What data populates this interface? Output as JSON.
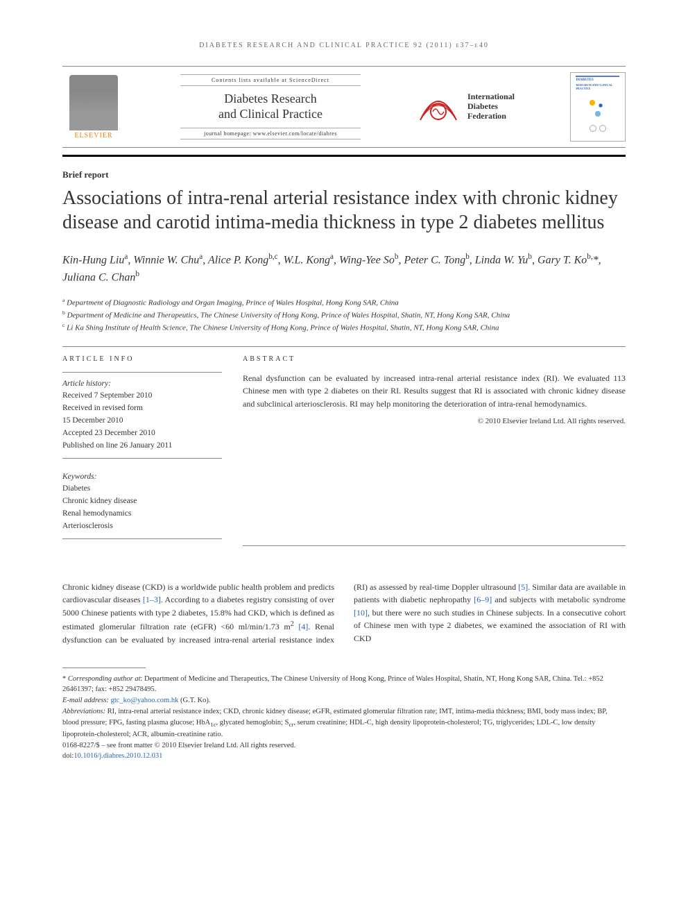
{
  "running_head": "DIABETES RESEARCH AND CLINICAL PRACTICE 92 (2011) e37–e40",
  "header": {
    "contents_line": "Contents lists available at ScienceDirect",
    "journal_title_l1": "Diabetes Research",
    "journal_title_l2": "and Clinical Practice",
    "homepage": "journal homepage: www.elsevier.com/locate/diabres",
    "elsevier_label": "ELSEVIER",
    "idf_l1": "International",
    "idf_l2": "Diabetes",
    "idf_l3": "Federation",
    "cover_label_l1": "DIABETES",
    "cover_label_l2": "RESEARCH AND CLINICAL PRACTICE"
  },
  "article": {
    "section": "Brief report",
    "title": "Associations of intra-renal arterial resistance index with chronic kidney disease and carotid intima-media thickness in type 2 diabetes mellitus",
    "authors_html": "Kin-Hung Liu<sup>a</sup>, Winnie W. Chu<sup>a</sup>, Alice P. Kong<sup>b,c</sup>, W.L. Kong<sup>a</sup>, Wing-Yee So<sup>b</sup>, Peter C. Tong<sup>b</sup>, Linda W. Yu<sup>b</sup>, Gary T. Ko<sup>b,</sup>*, Juliana C. Chan<sup>b</sup>",
    "affiliations": [
      "<sup>a</sup> Department of Diagnostic Radiology and Organ Imaging, Prince of Wales Hospital, Hong Kong SAR, China",
      "<sup>b</sup> Department of Medicine and Therapeutics, The Chinese University of Hong Kong, Prince of Wales Hospital, Shatin, NT, Hong Kong SAR, China",
      "<sup>c</sup> Li Ka Shing Institute of Health Science, The Chinese University of Hong Kong, Prince of Wales Hospital, Shatin, NT, Hong Kong SAR, China"
    ]
  },
  "info": {
    "heading": "ARTICLE INFO",
    "history_label": "Article history:",
    "history": [
      "Received 7 September 2010",
      "Received in revised form",
      "15 December 2010",
      "Accepted 23 December 2010",
      "Published on line 26 January 2011"
    ],
    "keywords_label": "Keywords:",
    "keywords": [
      "Diabetes",
      "Chronic kidney disease",
      "Renal hemodynamics",
      "Arteriosclerosis"
    ]
  },
  "abstract": {
    "heading": "ABSTRACT",
    "text": "Renal dysfunction can be evaluated by increased intra-renal arterial resistance index (RI). We evaluated 113 Chinese men with type 2 diabetes on their RI. Results suggest that RI is associated with chronic kidney disease and subclinical arteriosclerosis. RI may help monitoring the deterioration of intra-renal hemodynamics.",
    "copyright": "© 2010 Elsevier Ireland Ltd. All rights reserved."
  },
  "body": {
    "p1_a": "Chronic kidney disease (CKD) is a worldwide public health problem and predicts cardiovascular diseases ",
    "c1": "[1–3]",
    "p1_b": ". According to a diabetes registry consisting of over 5000 Chinese patients with type 2 diabetes, 15.8% had CKD, which is defined as estimated glomerular filtration rate (eGFR) <60 ml/min/1.73 m",
    "sup2": "2",
    "sp": " ",
    "c2": "[4]",
    "p1_c": ". Renal dysfunction can be evaluated by increased intra-renal arterial resistance index (RI) as assessed by real-time Doppler ultrasound ",
    "c3": "[5]",
    "p1_d": ". Similar data are available in patients with diabetic nephropathy ",
    "c4": "[6–9]",
    "p1_e": " and subjects with metabolic syndrome ",
    "c5": "[10]",
    "p1_f": ", but there were no such studies in Chinese subjects. In a consecutive cohort of Chinese men with type 2 diabetes, we examined the association of RI with CKD"
  },
  "footnotes": {
    "corr_label": "Corresponding author at",
    "corr_text": ": Department of Medicine and Therapeutics, The Chinese University of Hong Kong, Prince of Wales Hospital, Shatin, NT, Hong Kong SAR, China. Tel.: +852 26461397; fax: +852 29478495.",
    "email_label": "E-mail address:",
    "email": "gtc_ko@yahoo.com.hk",
    "email_who": " (G.T. Ko).",
    "abbr_label": "Abbreviations:",
    "abbr_text": " RI, intra-renal arterial resistance index; CKD, chronic kidney disease; eGFR, estimated glomerular filtration rate; IMT, intima-media thickness; BMI, body mass index; BP, blood pressure; FPG, fasting plasma glucose; HbA1c, glycated hemoglobin; Scr, serum creatinine; HDL-C, high density lipoprotein-cholesterol; TG, triglycerides; LDL-C, low density lipoprotein-cholesterol; ACR, albumin-creatinine ratio.",
    "issn_line": "0168-8227/$ – see front matter © 2010 Elsevier Ireland Ltd. All rights reserved.",
    "doi_label": "doi:",
    "doi": "10.1016/j.diabres.2010.12.031"
  },
  "colors": {
    "link": "#2a62b8",
    "elsevier_orange": "#ff7a00",
    "rule": "#888888"
  }
}
